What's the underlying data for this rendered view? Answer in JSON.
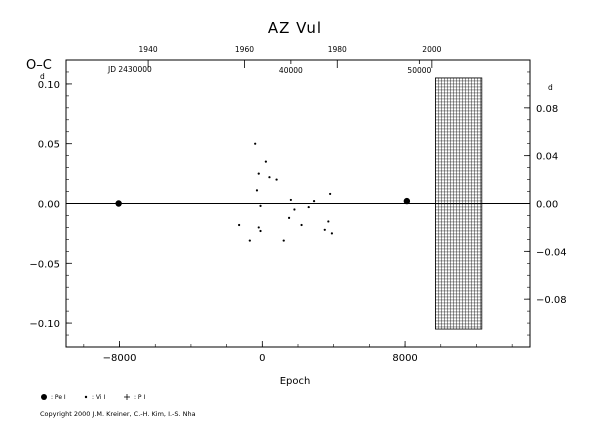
{
  "chart_data": {
    "type": "scatter",
    "title": "AZ  Vul",
    "ylabel": "O–C",
    "ylabel_unit": "d",
    "xlabel": "Epoch",
    "xlim": [
      -11000,
      15000
    ],
    "ylim": [
      -0.12,
      0.12
    ],
    "x_ticks": [
      {
        "value": -8000,
        "label": "−8000"
      },
      {
        "value": 0,
        "label": "0"
      },
      {
        "value": 8000,
        "label": "8000"
      }
    ],
    "y_ticks": [
      {
        "value": 0.1,
        "label": "0.10"
      },
      {
        "value": 0.05,
        "label": "0.05"
      },
      {
        "value": 0.0,
        "label": "0.00"
      },
      {
        "value": -0.05,
        "label": "−0.05"
      },
      {
        "value": -0.1,
        "label": "−0.10"
      }
    ],
    "right_axis": {
      "ticks": [
        {
          "value": 0.08,
          "label": "0.08"
        },
        {
          "value": 0.04,
          "label": "0.04"
        },
        {
          "value": 0.0,
          "label": "0.00"
        },
        {
          "value": -0.04,
          "label": "−0.04"
        },
        {
          "value": -0.08,
          "label": "−0.08"
        }
      ],
      "unit": "d",
      "range": [
        -0.12,
        0.12
      ]
    },
    "top_axis": {
      "year_ticks": [
        {
          "year": 1940,
          "epoch": -6400
        },
        {
          "year": 1960,
          "epoch": -1000
        },
        {
          "year": 1980,
          "epoch": 4200
        },
        {
          "year": 2000,
          "epoch": 9500
        }
      ],
      "jd_label": "JD 2430000",
      "jd_ticks": [
        {
          "label": "40000",
          "epoch": 1600
        },
        {
          "label": "50000",
          "epoch": 8800
        }
      ]
    },
    "grid_region": {
      "x_start": 9700,
      "x_end": 12300,
      "ylim": [
        -0.105,
        0.105
      ]
    },
    "zero_line": 0,
    "series": [
      {
        "name": "Pe",
        "legend_label": ": Pe I",
        "marker": "filled-circle",
        "points": [
          [
            -8050,
            0.0
          ],
          [
            8100,
            0.002
          ]
        ]
      },
      {
        "name": "Vi",
        "legend_label": ": Vi I",
        "marker": "dot",
        "points": [
          [
            -400,
            0.05
          ],
          [
            200,
            0.035
          ],
          [
            -200,
            0.025
          ],
          [
            400,
            0.022
          ],
          [
            800,
            0.02
          ],
          [
            -300,
            0.011
          ],
          [
            1600,
            0.003
          ],
          [
            2900,
            0.002
          ],
          [
            2600,
            -0.003
          ],
          [
            -100,
            -0.002
          ],
          [
            1800,
            -0.005
          ],
          [
            1500,
            -0.012
          ],
          [
            3800,
            0.008
          ],
          [
            -1300,
            -0.018
          ],
          [
            -200,
            -0.02
          ],
          [
            -100,
            -0.023
          ],
          [
            2200,
            -0.018
          ],
          [
            3700,
            -0.015
          ],
          [
            3500,
            -0.022
          ],
          [
            3900,
            -0.025
          ],
          [
            -700,
            -0.031
          ],
          [
            1200,
            -0.031
          ]
        ]
      },
      {
        "name": "Pl",
        "legend_label": ": P I",
        "marker": "plus",
        "points": []
      }
    ],
    "copyright": "Copyright 2000 J.M. Kreiner, C.-H. Kim, I.-S. Nha"
  }
}
